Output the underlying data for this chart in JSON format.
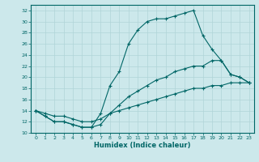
{
  "xlabel": "Humidex (Indice chaleur)",
  "bg_color": "#cce8eb",
  "line_color": "#006666",
  "grid_color": "#b0d4d8",
  "xlim": [
    -0.5,
    23.5
  ],
  "ylim": [
    10,
    33
  ],
  "yticks": [
    10,
    12,
    14,
    16,
    18,
    20,
    22,
    24,
    26,
    28,
    30,
    32
  ],
  "xticks": [
    0,
    1,
    2,
    3,
    4,
    5,
    6,
    7,
    8,
    9,
    10,
    11,
    12,
    13,
    14,
    15,
    16,
    17,
    18,
    19,
    20,
    21,
    22,
    23
  ],
  "line1_x": [
    0,
    1,
    2,
    3,
    4,
    5,
    6,
    7,
    8,
    9,
    10,
    11,
    12,
    13,
    14,
    15,
    16,
    17,
    18,
    19,
    20,
    21,
    22,
    23
  ],
  "line1_y": [
    14,
    13,
    12,
    12,
    11.5,
    11,
    11,
    13.5,
    18.5,
    21,
    26,
    28.5,
    30,
    30.5,
    30.5,
    31,
    31.5,
    32,
    27.5,
    25,
    23,
    20.5,
    20,
    19
  ],
  "line2_x": [
    0,
    1,
    2,
    3,
    4,
    5,
    6,
    7,
    8,
    9,
    10,
    11,
    12,
    13,
    14,
    15,
    16,
    17,
    18,
    19,
    20,
    21,
    22,
    23
  ],
  "line2_y": [
    14,
    13,
    12,
    12,
    11.5,
    11,
    11,
    11.5,
    13.5,
    15,
    16.5,
    17.5,
    18.5,
    19.5,
    20,
    21,
    21.5,
    22,
    22,
    23,
    23,
    20.5,
    20,
    19
  ],
  "line3_x": [
    0,
    1,
    2,
    3,
    4,
    5,
    6,
    7,
    8,
    9,
    10,
    11,
    12,
    13,
    14,
    15,
    16,
    17,
    18,
    19,
    20,
    21,
    22,
    23
  ],
  "line3_y": [
    14,
    13.5,
    13,
    13,
    12.5,
    12,
    12,
    12.5,
    13.5,
    14,
    14.5,
    15,
    15.5,
    16,
    16.5,
    17,
    17.5,
    18,
    18,
    18.5,
    18.5,
    19,
    19,
    19
  ]
}
